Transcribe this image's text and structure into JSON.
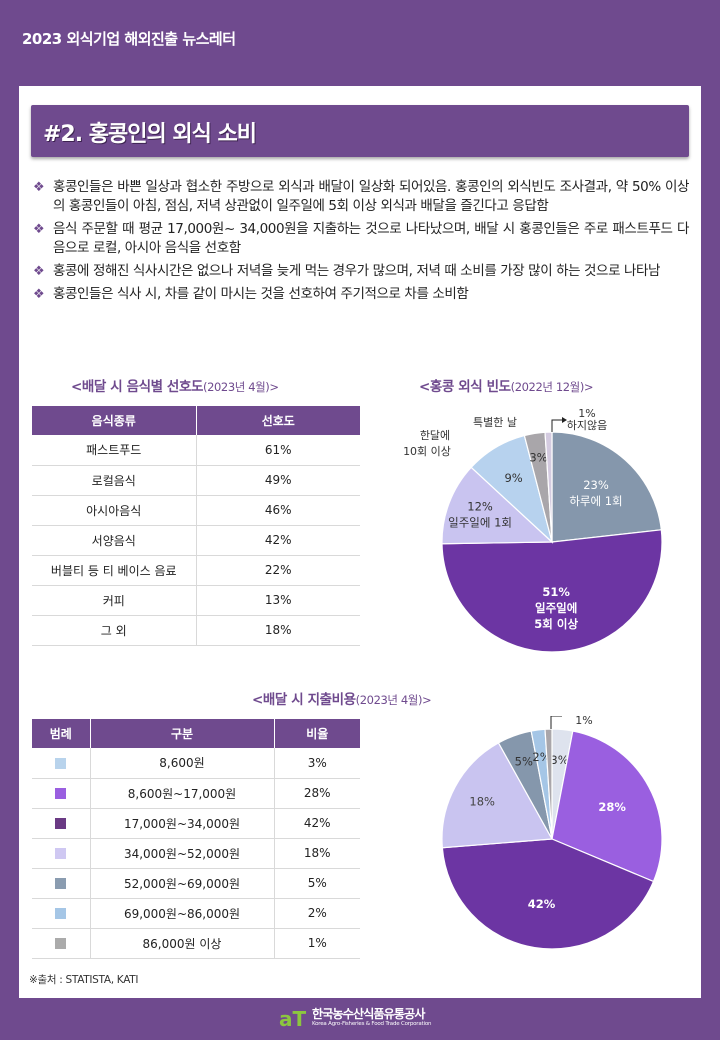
{
  "header": {
    "title": "2023 외식기업 해외진출 뉴스레터"
  },
  "section": {
    "title": "#2. 홍콩인의 외식 소비"
  },
  "bullets": [
    "홍콩인들은 바쁜 일상과 협소한 주방으로 외식과 배달이 일상화 되어있음. 홍콩인의 외식빈도 조사결과, 약 50% 이상의 홍콩인들이 아침, 점심, 저녁 상관없이 일주일에 5회 이상 외식과 배달을 즐긴다고 응답함",
    "음식 주문할 때 평균 17,000원~ 34,000원을 지출하는 것으로 나타났으며, 배달 시 홍콩인들은 주로 패스트푸드 다음으로 로컬, 아시아 음식을 선호함",
    "홍콩에 정해진 식사시간은 없으나 저녁을 늦게 먹는 경우가 많으며, 저녁 때 소비를 가장 많이 하는 것으로 나타남",
    "홍콩인들은 식사 시, 차를 같이 마시는 것을 선호하여 주기적으로 차를 소비함"
  ],
  "bullet_marker": "❖",
  "food_pref": {
    "title": "<배달 시 음식별 선호도",
    "date": "(2023년 4월)>",
    "headers": [
      "음식종류",
      "선호도"
    ],
    "rows": [
      [
        "패스트푸드",
        "61%"
      ],
      [
        "로컬음식",
        "49%"
      ],
      [
        "아시아음식",
        "46%"
      ],
      [
        "서양음식",
        "42%"
      ],
      [
        "버블티 등 티 베이스 음료",
        "22%"
      ],
      [
        "커피",
        "13%"
      ],
      [
        "그 외",
        "18%"
      ]
    ]
  },
  "spending": {
    "title": "<배달 시 지출비용",
    "date": "(2023년 4월)>",
    "headers": [
      "범례",
      "구분",
      "비율"
    ],
    "rows": [
      {
        "color": "#b8d3ec",
        "label": "8,600원",
        "value": "3%"
      },
      {
        "color": "#9a5fe0",
        "label": "8,600원~17,000원",
        "value": "28%"
      },
      {
        "color": "#6a3a84",
        "label": "17,000원~34,000원",
        "value": "42%"
      },
      {
        "color": "#cfc8f2",
        "label": "34,000원~52,000원",
        "value": "18%"
      },
      {
        "color": "#8a9cb0",
        "label": "52,000원~69,000원",
        "value": "5%"
      },
      {
        "color": "#a5c6e6",
        "label": "69,000원~86,000원",
        "value": "2%"
      },
      {
        "color": "#ababab",
        "label": "86,000원 이상",
        "value": "1%"
      }
    ]
  },
  "source": "※출처 : STATISTA, KATI",
  "footer": {
    "logo_mark": "aT",
    "org_ko": "한국농수산식품유통공사",
    "org_en": "Korea Agro-Fisheries & Food Trade Corporation"
  },
  "chart_data": [
    {
      "type": "pie",
      "title": "<홍콩 외식 빈도(2022년 12월)>",
      "labels": [
        "하루에 1회",
        "일주일에 5회 이상",
        "일주일에 1회",
        "한달에 10회 이상",
        "특별한 날",
        "하지않음"
      ],
      "values": [
        23,
        51,
        12,
        9,
        3,
        1
      ],
      "colors": [
        "#8597ac",
        "#6c35a3",
        "#c9c4f0",
        "#b7d2ee",
        "#a9a6aa",
        "#d4cbe0"
      ]
    },
    {
      "type": "pie",
      "title": "<배달 시 지출비용(2023년 4월)>",
      "labels": [
        "8,600원",
        "8,600원~17,000원",
        "17,000원~34,000원",
        "34,000원~52,000원",
        "52,000원~69,000원",
        "69,000원~86,000원",
        "86,000원 이상"
      ],
      "values": [
        3,
        28,
        42,
        18,
        5,
        2,
        1
      ],
      "colors": [
        "#dee3ee",
        "#9a5fe0",
        "#6c35a3",
        "#c9c4f0",
        "#8597ac",
        "#a5c6e6",
        "#a9a6aa"
      ]
    }
  ]
}
